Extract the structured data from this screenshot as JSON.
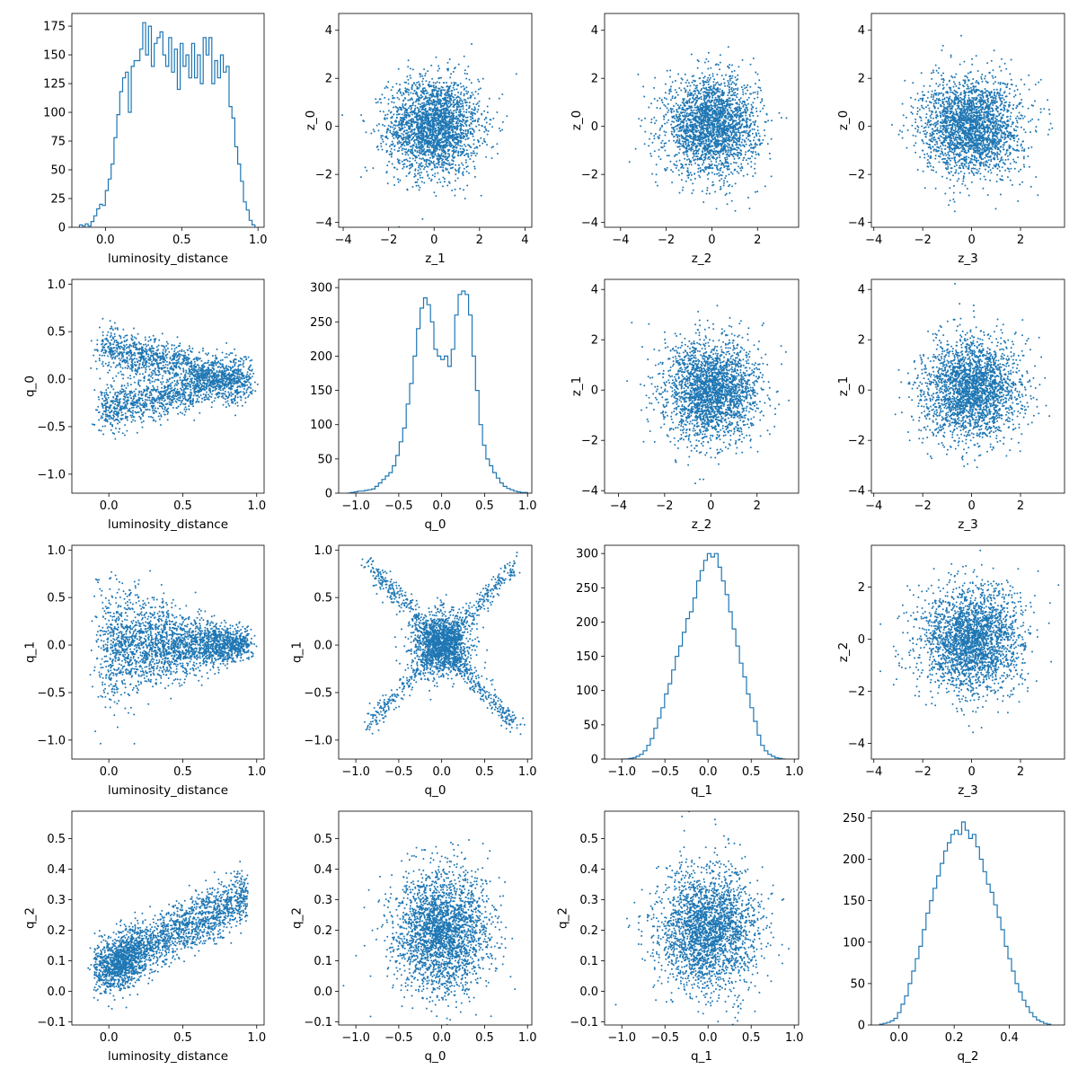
{
  "colors": {
    "series": "#1f77b4",
    "axes": "#000000",
    "background": "#ffffff"
  },
  "chart_data": [
    {
      "id": "p00",
      "type": "histogram",
      "xlabel": "luminosity_distance",
      "ylabel": "",
      "xlim": [
        -0.22,
        1.04
      ],
      "ylim": [
        0,
        186
      ],
      "xticks": [
        0.0,
        0.5,
        1.0
      ],
      "xticklabels": [
        "0.0",
        "0.5",
        "1.0"
      ],
      "yticks": [
        0,
        25,
        50,
        75,
        100,
        125,
        150,
        175
      ],
      "yticklabels": [
        "0",
        "25",
        "50",
        "75",
        "100",
        "125",
        "150",
        "175"
      ],
      "edges_range": [
        -0.17,
        0.98
      ],
      "counts": [
        2,
        1,
        3,
        1,
        5,
        10,
        16,
        20,
        19,
        32,
        42,
        55,
        78,
        98,
        118,
        130,
        135,
        100,
        140,
        145,
        145,
        155,
        178,
        150,
        175,
        140,
        160,
        165,
        170,
        150,
        140,
        165,
        135,
        155,
        120,
        160,
        140,
        150,
        130,
        160,
        130,
        150,
        125,
        165,
        150,
        165,
        125,
        145,
        130,
        150,
        135,
        140,
        105,
        95,
        70,
        55,
        40,
        22,
        15,
        6,
        2
      ]
    },
    {
      "id": "p01",
      "type": "scatter",
      "xvar": "z_1",
      "yvar": "z_0",
      "xlabel": "z_1",
      "ylabel": "z_0",
      "xlim": [
        -4.2,
        4.3
      ],
      "ylim": [
        -4.2,
        4.7
      ],
      "xticks": [
        -4,
        -2,
        0,
        2,
        4
      ],
      "xticklabels": [
        "−4",
        "−2",
        "0",
        "2",
        "4"
      ],
      "yticks": [
        -4,
        -2,
        0,
        2,
        4
      ],
      "yticklabels": [
        "−4",
        "−2",
        "0",
        "2",
        "4"
      ],
      "dist": {
        "kind": "gauss",
        "mx": 0,
        "sx": 1,
        "my": 0,
        "sy": 1,
        "n": 2500
      }
    },
    {
      "id": "p02",
      "type": "scatter",
      "xvar": "z_2",
      "yvar": "z_0",
      "xlabel": "z_2",
      "ylabel": "z_0",
      "xlim": [
        -4.7,
        3.8
      ],
      "ylim": [
        -4.2,
        4.7
      ],
      "xticks": [
        -4,
        -2,
        0,
        2
      ],
      "xticklabels": [
        "−4",
        "−2",
        "0",
        "2"
      ],
      "yticks": [
        -4,
        -2,
        0,
        2,
        4
      ],
      "yticklabels": [
        "−4",
        "−2",
        "0",
        "2",
        "4"
      ],
      "dist": {
        "kind": "gauss",
        "mx": 0,
        "sx": 1,
        "my": 0,
        "sy": 1,
        "n": 2500
      }
    },
    {
      "id": "p03",
      "type": "scatter",
      "xvar": "z_3",
      "yvar": "z_0",
      "xlabel": "z_3",
      "ylabel": "z_0",
      "xlim": [
        -4.1,
        3.8
      ],
      "ylim": [
        -4.2,
        4.7
      ],
      "xticks": [
        -4,
        -2,
        0,
        2
      ],
      "xticklabels": [
        "−4",
        "−2",
        "0",
        "2"
      ],
      "yticks": [
        -4,
        -2,
        0,
        2,
        4
      ],
      "yticklabels": [
        "−4",
        "−2",
        "0",
        "2",
        "4"
      ],
      "dist": {
        "kind": "gauss",
        "mx": 0,
        "sx": 1,
        "my": 0,
        "sy": 1,
        "n": 2500
      }
    },
    {
      "id": "p10",
      "type": "scatter",
      "xvar": "luminosity_distance",
      "yvar": "q_0",
      "xlabel": "luminosity_distance",
      "ylabel": "q_0",
      "xlim": [
        -0.25,
        1.05
      ],
      "ylim": [
        -1.2,
        1.05
      ],
      "xticks": [
        0.0,
        0.5,
        1.0
      ],
      "xticklabels": [
        "0.0",
        "0.5",
        "1.0"
      ],
      "yticks": [
        -1.0,
        -0.5,
        0.0,
        0.5,
        1.0
      ],
      "yticklabels": [
        "−1.0",
        "−0.5",
        "0.0",
        "0.5",
        "1.0"
      ],
      "dist": {
        "kind": "fork",
        "n": 2500
      }
    },
    {
      "id": "p11",
      "type": "histogram",
      "xlabel": "q_0",
      "ylabel": "",
      "xlim": [
        -1.2,
        1.05
      ],
      "ylim": [
        0,
        312
      ],
      "xticks": [
        -1.0,
        -0.5,
        0.0,
        0.5,
        1.0
      ],
      "xticklabels": [
        "−1.0",
        "−0.5",
        "0.0",
        "0.5",
        "1.0"
      ],
      "yticks": [
        0,
        50,
        100,
        150,
        200,
        250,
        300
      ],
      "yticklabels": [
        "0",
        "50",
        "100",
        "150",
        "200",
        "250",
        "300"
      ],
      "edges_range": [
        -1.1,
        1.0
      ],
      "counts": [
        0,
        1,
        2,
        3,
        3,
        4,
        5,
        6,
        10,
        15,
        20,
        25,
        30,
        40,
        55,
        75,
        95,
        130,
        160,
        200,
        240,
        270,
        285,
        275,
        250,
        210,
        200,
        195,
        200,
        185,
        210,
        260,
        290,
        295,
        290,
        260,
        200,
        150,
        100,
        70,
        50,
        40,
        30,
        22,
        15,
        10,
        7,
        5,
        3,
        2,
        1,
        1
      ]
    },
    {
      "id": "p12",
      "type": "scatter",
      "xvar": "z_2",
      "yvar": "z_1",
      "xlabel": "z_2",
      "ylabel": "z_1",
      "xlim": [
        -4.6,
        3.8
      ],
      "ylim": [
        -4.1,
        4.4
      ],
      "xticks": [
        -4,
        -2,
        0,
        2
      ],
      "xticklabels": [
        "−4",
        "−2",
        "0",
        "2"
      ],
      "yticks": [
        -4,
        -2,
        0,
        2,
        4
      ],
      "yticklabels": [
        "−4",
        "−2",
        "0",
        "2",
        "4"
      ],
      "dist": {
        "kind": "gauss",
        "mx": 0,
        "sx": 1,
        "my": 0,
        "sy": 1,
        "n": 2500
      }
    },
    {
      "id": "p13",
      "type": "scatter",
      "xvar": "z_3",
      "yvar": "z_1",
      "xlabel": "z_3",
      "ylabel": "z_1",
      "xlim": [
        -4.1,
        3.8
      ],
      "ylim": [
        -4.1,
        4.4
      ],
      "xticks": [
        -4,
        -2,
        0,
        2
      ],
      "xticklabels": [
        "−4",
        "−2",
        "0",
        "2"
      ],
      "yticks": [
        -4,
        -2,
        0,
        2,
        4
      ],
      "yticklabels": [
        "−4",
        "−2",
        "0",
        "2",
        "4"
      ],
      "dist": {
        "kind": "gauss",
        "mx": 0,
        "sx": 1,
        "my": 0,
        "sy": 1,
        "n": 2500
      }
    },
    {
      "id": "p20",
      "type": "scatter",
      "xvar": "luminosity_distance",
      "yvar": "q_1",
      "xlabel": "luminosity_distance",
      "ylabel": "q_1",
      "xlim": [
        -0.25,
        1.05
      ],
      "ylim": [
        -1.2,
        1.05
      ],
      "xticks": [
        0.0,
        0.5,
        1.0
      ],
      "xticklabels": [
        "0.0",
        "0.5",
        "1.0"
      ],
      "yticks": [
        -1.0,
        -0.5,
        0.0,
        0.5,
        1.0
      ],
      "yticklabels": [
        "−1.0",
        "−0.5",
        "0.0",
        "0.5",
        "1.0"
      ],
      "dist": {
        "kind": "cone",
        "n": 2500
      }
    },
    {
      "id": "p21",
      "type": "scatter",
      "xvar": "q_0",
      "yvar": "q_1",
      "xlabel": "q_0",
      "ylabel": "q_1",
      "xlim": [
        -1.2,
        1.05
      ],
      "ylim": [
        -1.2,
        1.05
      ],
      "xticks": [
        -1.0,
        -0.5,
        0.0,
        0.5,
        1.0
      ],
      "xticklabels": [
        "−1.0",
        "−0.5",
        "0.0",
        "0.5",
        "1.0"
      ],
      "yticks": [
        -1.0,
        -0.5,
        0.0,
        0.5,
        1.0
      ],
      "yticklabels": [
        "−1.0",
        "−0.5",
        "0.0",
        "0.5",
        "1.0"
      ],
      "dist": {
        "kind": "xshape",
        "n": 2500
      }
    },
    {
      "id": "p22",
      "type": "histogram",
      "xlabel": "q_1",
      "ylabel": "",
      "xlim": [
        -1.2,
        1.05
      ],
      "ylim": [
        0,
        312
      ],
      "xticks": [
        -1.0,
        -0.5,
        0.0,
        0.5,
        1.0
      ],
      "xticklabels": [
        "−1.0",
        "−0.5",
        "0.0",
        "0.5",
        "1.0"
      ],
      "yticks": [
        0,
        50,
        100,
        150,
        200,
        250,
        300
      ],
      "yticklabels": [
        "0",
        "50",
        "100",
        "150",
        "200",
        "250",
        "300"
      ],
      "edges_range": [
        -1.0,
        0.9
      ],
      "counts": [
        0,
        0,
        1,
        2,
        4,
        7,
        12,
        20,
        30,
        45,
        60,
        75,
        95,
        110,
        130,
        150,
        165,
        185,
        205,
        215,
        235,
        260,
        275,
        290,
        300,
        295,
        300,
        280,
        260,
        240,
        215,
        190,
        165,
        140,
        120,
        95,
        75,
        55,
        35,
        20,
        12,
        7,
        4,
        2,
        1,
        0
      ]
    },
    {
      "id": "p23",
      "type": "scatter",
      "xvar": "z_3",
      "yvar": "z_2",
      "xlabel": "z_3",
      "ylabel": "z_2",
      "xlim": [
        -4.1,
        3.8
      ],
      "ylim": [
        -4.6,
        3.6
      ],
      "xticks": [
        -4,
        -2,
        0,
        2
      ],
      "xticklabels": [
        "−4",
        "−2",
        "0",
        "2"
      ],
      "yticks": [
        -4,
        -2,
        0,
        2
      ],
      "yticklabels": [
        "−4",
        "−2",
        "0",
        "2"
      ],
      "dist": {
        "kind": "gauss",
        "mx": 0,
        "sx": 1,
        "my": 0,
        "sy": 1,
        "n": 2500
      }
    },
    {
      "id": "p30",
      "type": "scatter",
      "xvar": "luminosity_distance",
      "yvar": "q_2",
      "xlabel": "luminosity_distance",
      "ylabel": "q_2",
      "xlim": [
        -0.25,
        1.05
      ],
      "ylim": [
        -0.11,
        0.59
      ],
      "xticks": [
        0.0,
        0.5,
        1.0
      ],
      "xticklabels": [
        "0.0",
        "0.5",
        "1.0"
      ],
      "yticks": [
        -0.1,
        0.0,
        0.1,
        0.2,
        0.3,
        0.4,
        0.5
      ],
      "yticklabels": [
        "−0.1",
        "0.0",
        "0.1",
        "0.2",
        "0.3",
        "0.4",
        "0.5"
      ],
      "dist": {
        "kind": "trend",
        "n": 2500
      }
    },
    {
      "id": "p31",
      "type": "scatter",
      "xvar": "q_0",
      "yvar": "q_2",
      "xlabel": "q_0",
      "ylabel": "q_2",
      "xlim": [
        -1.2,
        1.05
      ],
      "ylim": [
        -0.11,
        0.59
      ],
      "xticks": [
        -1.0,
        -0.5,
        0.0,
        0.5,
        1.0
      ],
      "xticklabels": [
        "−1.0",
        "−0.5",
        "0.0",
        "0.5",
        "1.0"
      ],
      "yticks": [
        -0.1,
        0.0,
        0.1,
        0.2,
        0.3,
        0.4,
        0.5
      ],
      "yticklabels": [
        "−0.1",
        "0.0",
        "0.1",
        "0.2",
        "0.3",
        "0.4",
        "0.5"
      ],
      "dist": {
        "kind": "blob",
        "n": 2500
      }
    },
    {
      "id": "p32",
      "type": "scatter",
      "xvar": "q_1",
      "yvar": "q_2",
      "xlabel": "q_1",
      "ylabel": "q_2",
      "xlim": [
        -1.2,
        1.05
      ],
      "ylim": [
        -0.11,
        0.59
      ],
      "xticks": [
        -1.0,
        -0.5,
        0.0,
        0.5,
        1.0
      ],
      "xticklabels": [
        "−1.0",
        "−0.5",
        "0.0",
        "0.5",
        "1.0"
      ],
      "yticks": [
        -0.1,
        0.0,
        0.1,
        0.2,
        0.3,
        0.4,
        0.5
      ],
      "yticklabels": [
        "−0.1",
        "0.0",
        "0.1",
        "0.2",
        "0.3",
        "0.4",
        "0.5"
      ],
      "dist": {
        "kind": "blob",
        "n": 2500
      }
    },
    {
      "id": "p33",
      "type": "histogram",
      "xlabel": "q_2",
      "ylabel": "",
      "xlim": [
        -0.1,
        0.6
      ],
      "ylim": [
        0,
        258
      ],
      "xticks": [
        0.0,
        0.2,
        0.4
      ],
      "xticklabels": [
        "0.0",
        "0.2",
        "0.4"
      ],
      "yticks": [
        0,
        50,
        100,
        150,
        200,
        250
      ],
      "yticklabels": [
        "0",
        "50",
        "100",
        "150",
        "200",
        "250"
      ],
      "edges_range": [
        -0.07,
        0.55
      ],
      "counts": [
        1,
        2,
        3,
        5,
        8,
        15,
        25,
        35,
        50,
        65,
        80,
        95,
        115,
        135,
        150,
        165,
        180,
        195,
        210,
        220,
        230,
        235,
        230,
        245,
        235,
        225,
        230,
        215,
        200,
        185,
        170,
        160,
        145,
        130,
        115,
        95,
        80,
        65,
        50,
        40,
        30,
        22,
        15,
        10,
        6,
        4,
        2,
        1
      ]
    }
  ]
}
